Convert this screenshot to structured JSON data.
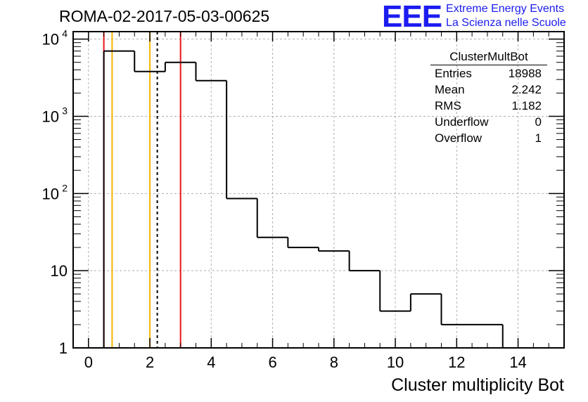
{
  "title": "ROMA-02-2017-05-03-00625",
  "logo": {
    "mark": "EEE",
    "line1": "Extreme Energy Events",
    "line2": "La Scienza nelle Scuole",
    "color": "#1c1cf0"
  },
  "stats": {
    "name": "ClusterMultBot",
    "rows": [
      {
        "label": "Entries",
        "value": "18988"
      },
      {
        "label": "Mean",
        "value": "2.242"
      },
      {
        "label": "RMS",
        "value": "1.182"
      },
      {
        "label": "Underflow",
        "value": "0"
      },
      {
        "label": "Overflow",
        "value": "1"
      }
    ]
  },
  "chart_data": {
    "type": "bar",
    "title": "ROMA-02-2017-05-03-00625",
    "xlabel": "Cluster multiplicity Bot",
    "ylabel": "",
    "xlim": [
      -0.5,
      15.5
    ],
    "ylim": [
      1,
      12500
    ],
    "yscale": "log",
    "grid": true,
    "x_ticks": [
      "0",
      "2",
      "4",
      "6",
      "8",
      "10",
      "12",
      "14"
    ],
    "x_tick_values": [
      0,
      2,
      4,
      6,
      8,
      10,
      12,
      14
    ],
    "y_ticks": [
      {
        "value": 1,
        "base": "1",
        "exp": ""
      },
      {
        "value": 10,
        "base": "10",
        "exp": ""
      },
      {
        "value": 100,
        "base": "10",
        "exp": "2"
      },
      {
        "value": 1000,
        "base": "10",
        "exp": "3"
      },
      {
        "value": 10000,
        "base": "10",
        "exp": "4"
      }
    ],
    "bins": [
      {
        "low": 0.5,
        "high": 1.5,
        "count": 7000
      },
      {
        "low": 1.5,
        "high": 2.5,
        "count": 3800
      },
      {
        "low": 2.5,
        "high": 3.5,
        "count": 5000
      },
      {
        "low": 3.5,
        "high": 4.5,
        "count": 2900
      },
      {
        "low": 4.5,
        "high": 5.5,
        "count": 86
      },
      {
        "low": 5.5,
        "high": 6.5,
        "count": 27
      },
      {
        "low": 6.5,
        "high": 7.5,
        "count": 20
      },
      {
        "low": 7.5,
        "high": 8.5,
        "count": 18
      },
      {
        "low": 8.5,
        "high": 9.5,
        "count": 10
      },
      {
        "low": 9.5,
        "high": 10.5,
        "count": 3
      },
      {
        "low": 10.5,
        "high": 11.5,
        "count": 5
      },
      {
        "low": 11.5,
        "high": 13.5,
        "count": 2
      }
    ],
    "markers": [
      {
        "x": 0.5,
        "color": "#e8161a",
        "style": "solid"
      },
      {
        "x": 0.77,
        "color": "#f7b500",
        "style": "solid"
      },
      {
        "x": 2.0,
        "color": "#f7b500",
        "style": "solid"
      },
      {
        "x": 2.242,
        "color": "#000000",
        "style": "dashed"
      },
      {
        "x": 3.0,
        "color": "#e8161a",
        "style": "solid"
      }
    ]
  }
}
